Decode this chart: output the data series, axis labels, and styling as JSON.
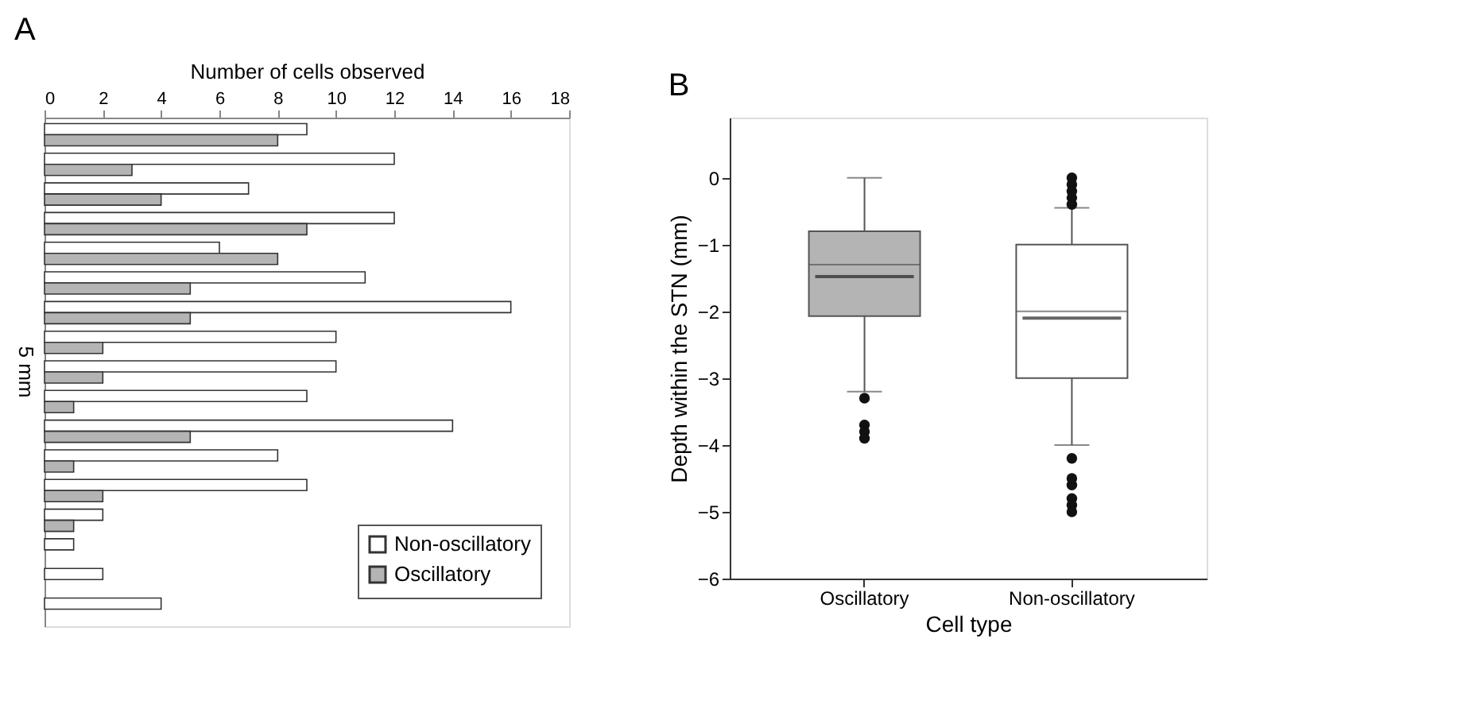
{
  "chart_data": [
    {
      "type": "bar",
      "title": "A",
      "orientation": "horizontal",
      "xlabel": "Number of cells observed",
      "xlim": [
        0,
        18
      ],
      "xticks": [
        0,
        2,
        4,
        6,
        8,
        10,
        12,
        14,
        16,
        18
      ],
      "categories": [
        null,
        null,
        null,
        null,
        null,
        null,
        null,
        null,
        null,
        null,
        null,
        null,
        null,
        null,
        null,
        null,
        null
      ],
      "series": [
        {
          "name": "Non-oscillatory",
          "color": "#ffffff",
          "values": [
            9,
            12,
            7,
            12,
            6,
            11,
            16,
            10,
            10,
            9,
            14,
            8,
            9,
            2,
            1,
            2,
            4
          ]
        },
        {
          "name": "Oscillatory",
          "color": "#b4b4b4",
          "values": [
            8,
            3,
            4,
            9,
            8,
            5,
            5,
            2,
            2,
            1,
            5,
            1,
            2,
            1,
            0,
            0,
            0
          ]
        }
      ],
      "annotations": [
        "5 mm"
      ],
      "legend": "bottom right",
      "tick_labels": "x",
      "grid": false
    },
    {
      "type": "box",
      "title": "B",
      "xlabel": "Cell type",
      "ylabel": "Depth within the STN (mm)",
      "categories": [
        "Oscillatory",
        "Non-oscillatory"
      ],
      "colors": [
        "#b4b4b4",
        "#ffffff"
      ],
      "ylim": [
        -6,
        0.9
      ],
      "yticks": [
        -6,
        -5,
        -4,
        -3,
        -2,
        -1,
        0
      ],
      "boxes": [
        {
          "low": -3.2,
          "q1": -2.07,
          "median": -1.3,
          "q3": -0.8,
          "high": 0,
          "mean": -1.48,
          "outliers": [
            -3.3,
            -3.7,
            -3.8,
            -3.9
          ]
        },
        {
          "low": -4.0,
          "q1": -3.0,
          "median": -2.0,
          "q3": -1.0,
          "high": -0.45,
          "mean": -2.1,
          "outliers": [
            0,
            -0.1,
            -0.2,
            -0.3,
            -0.4,
            -4.2,
            -4.5,
            -4.6,
            -4.8,
            -4.9,
            -5.0
          ]
        }
      ],
      "grid": false
    }
  ]
}
